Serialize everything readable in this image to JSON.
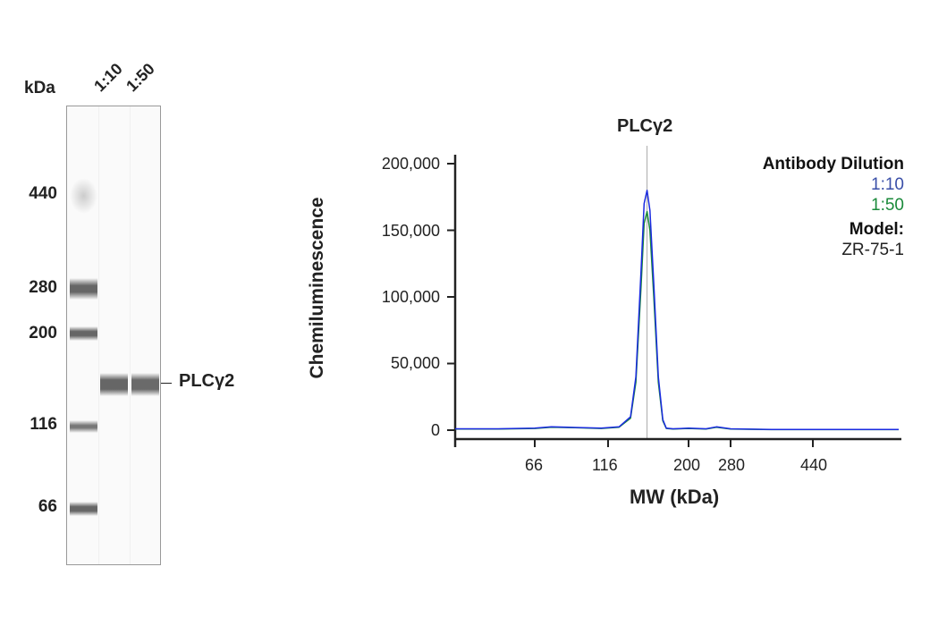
{
  "blot": {
    "unit_label": "kDa",
    "lanes": [
      "1:10",
      "1:50"
    ],
    "markers": [
      "440",
      "280",
      "200",
      "116",
      "66"
    ],
    "band_label": "PLCγ2"
  },
  "chart_data": {
    "type": "line",
    "title": "PLCγ2",
    "xlabel": "MW (kDa)",
    "ylabel": "Chemiluminescence",
    "xticks": [
      "66",
      "116",
      "200",
      "280",
      "440"
    ],
    "yticks": [
      "200,000",
      "150,000",
      "100,000",
      "50,000",
      "0"
    ],
    "ylim": [
      0,
      200000
    ],
    "xlim": [
      36,
      700
    ],
    "x_scale": "log (nonlinear)",
    "reference_line_kDa": 151,
    "legend": {
      "title": "Antibody Dilution",
      "model_label": "Model:",
      "model": "ZR-75-1",
      "placement": "top-right"
    },
    "x": [
      36,
      50,
      66,
      75,
      90,
      110,
      125,
      135,
      140,
      145,
      148,
      151,
      154,
      158,
      163,
      168,
      172,
      180,
      200,
      230,
      250,
      280,
      350,
      440,
      550,
      700
    ],
    "series": [
      {
        "name": "1:10",
        "color": "#1a2be0",
        "label_color": "#3a4fa8",
        "values": [
          1000,
          1000,
          1500,
          2500,
          2000,
          1500,
          2500,
          10000,
          40000,
          120000,
          170000,
          180000,
          165000,
          110000,
          40000,
          8000,
          1500,
          1000,
          1500,
          1000,
          2500,
          1000,
          500,
          500,
          500,
          500
        ]
      },
      {
        "name": "1:50",
        "color": "#1a8a3a",
        "label_color": "#1a8a3a",
        "values": [
          800,
          900,
          1300,
          2200,
          1800,
          1300,
          2200,
          9000,
          36000,
          108000,
          155000,
          164000,
          150000,
          100000,
          36000,
          7000,
          1300,
          900,
          1300,
          900,
          2200,
          900,
          400,
          400,
          400,
          400
        ]
      }
    ]
  }
}
